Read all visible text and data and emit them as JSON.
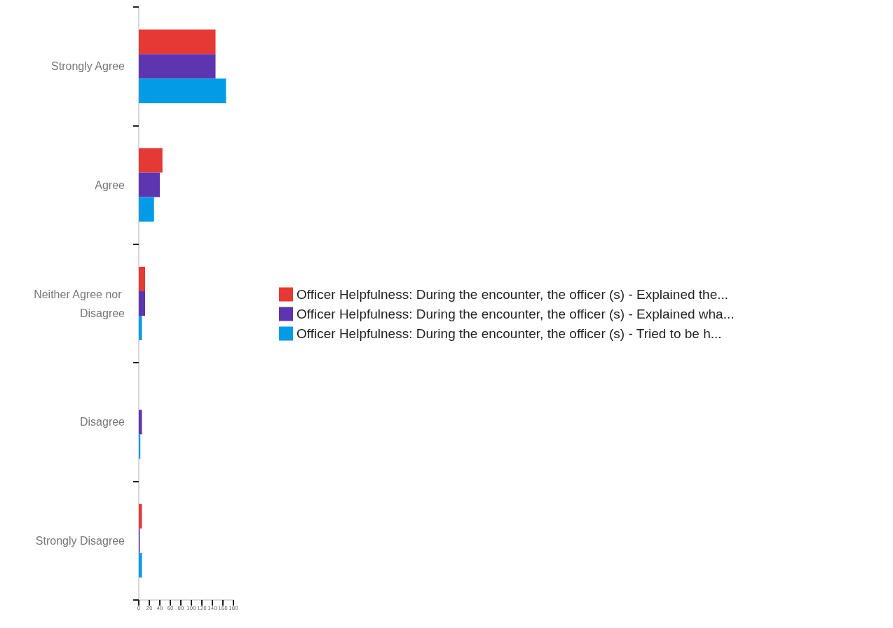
{
  "chart_data": {
    "type": "bar",
    "orientation": "horizontal",
    "categories": [
      "Strongly Agree",
      "Agree",
      "Neither Agree nor Disagree",
      "Disagree",
      "Strongly Disagree"
    ],
    "series": [
      {
        "name": "Officer Helpfulness: During the encounter, the officer (s) - Explained the...",
        "color": "#e53935",
        "values": [
          146,
          45,
          12,
          0,
          6
        ]
      },
      {
        "name": "Officer Helpfulness: During the encounter, the officer (s) - Explained wha...",
        "color": "#5e35b1",
        "values": [
          146,
          40,
          12,
          6,
          2
        ]
      },
      {
        "name": "Officer Helpfulness: During the encounter, the officer (s) - Tried to be h...",
        "color": "#039be5",
        "values": [
          166,
          29,
          6,
          3,
          6
        ]
      }
    ],
    "xlim": [
      0,
      180
    ],
    "xticks": [
      0,
      20,
      40,
      60,
      80,
      100,
      120,
      140,
      160,
      180
    ],
    "grid": false,
    "legend": "right"
  }
}
